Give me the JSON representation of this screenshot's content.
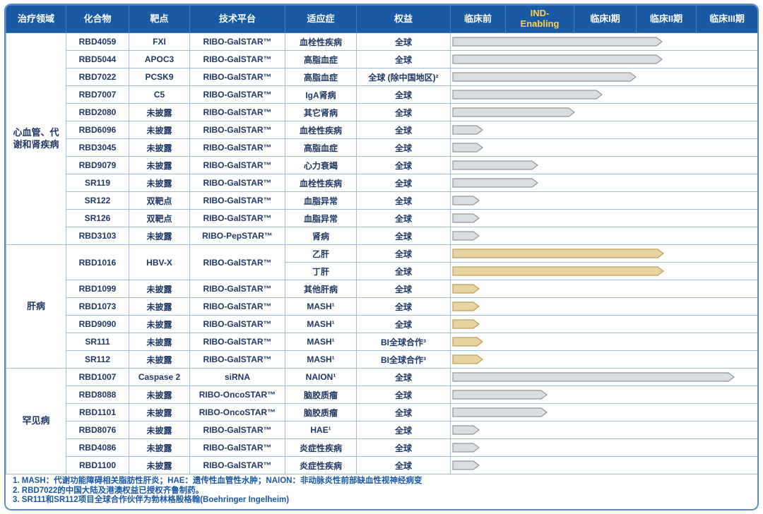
{
  "chart_data": {
    "type": "table",
    "title": "RNAi pipeline table",
    "columns": [
      "治疗领域",
      "化合物",
      "靶点",
      "技术平台",
      "适应症",
      "权益"
    ],
    "phases": [
      {
        "label": "临床前",
        "text_color": "#FFFFFF"
      },
      {
        "label": "IND-Enabling",
        "text_color": "#FFD24A"
      },
      {
        "label": "临床I期",
        "text_color": "#FFFFFF"
      },
      {
        "label": "临床II期",
        "text_color": "#FFFFFF"
      },
      {
        "label": "临床III期",
        "text_color": "#FFFFFF"
      }
    ],
    "phase_axis": {
      "min": 0,
      "max": 5,
      "note": "bar values are progress in phase units, 1 unit = one phase column"
    },
    "groups": [
      {
        "area": "心血管、代谢和肾疾病",
        "style": "cvm",
        "bar_color": "gray",
        "rows": [
          {
            "compound": "RBD4059",
            "target": "FXI",
            "platform": "RIBO-GalSTAR™",
            "indication": "血栓性疾病",
            "rights": "全球",
            "bar": 3.42
          },
          {
            "compound": "RBD5044",
            "target": "APOC3",
            "platform": "RIBO-GalSTAR™",
            "indication": "高脂血症",
            "rights": "全球",
            "bar": 3.42
          },
          {
            "compound": "RBD7022",
            "target": "PCSK9",
            "platform": "RIBO-GalSTAR™",
            "indication": "高脂血症",
            "rights": "全球 (除中国地区)²",
            "bar": 3.0
          },
          {
            "compound": "RBD7007",
            "target": "C5",
            "platform": "RIBO-GalSTAR™",
            "indication": "IgA肾病",
            "rights": "全球",
            "bar": 2.45
          },
          {
            "compound": "RBD2080",
            "target": "未披露",
            "platform": "RIBO-GalSTAR™",
            "indication": "其它肾病",
            "rights": "全球",
            "bar": 2.0
          },
          {
            "compound": "RBD6096",
            "target": "未披露",
            "platform": "RIBO-GalSTAR™",
            "indication": "血栓性疾病",
            "rights": "全球",
            "bar": 0.5
          },
          {
            "compound": "RBD3045",
            "target": "未披露",
            "platform": "RIBO-GalSTAR™",
            "indication": "高脂血症",
            "rights": "全球",
            "bar": 0.5
          },
          {
            "compound": "RBD9079",
            "target": "未披露",
            "platform": "RIBO-GalSTAR™",
            "indication": "心力衰竭",
            "rights": "全球",
            "bar": 1.4
          },
          {
            "compound": "SR119",
            "target": "未披露",
            "platform": "RIBO-GalSTAR™",
            "indication": "血栓性疾病",
            "rights": "全球",
            "bar": 1.4
          },
          {
            "compound": "SR122",
            "target": "双靶点",
            "platform": "RIBO-GalSTAR™",
            "indication": "血脂异常",
            "rights": "全球",
            "bar": 0.45
          },
          {
            "compound": "SR126",
            "target": "双靶点",
            "platform": "RIBO-GalSTAR™",
            "indication": "血脂异常",
            "rights": "全球",
            "bar": 0.45
          },
          {
            "compound": "RBD3103",
            "target": "未披露",
            "platform": "RIBO-PepSTAR™",
            "indication": "肾病",
            "rights": "全球",
            "bar": 0.45,
            "highlight": "blue"
          }
        ]
      },
      {
        "area": "肝病",
        "style": "liver",
        "bar_color": "tan",
        "rows": [
          {
            "compound": "RBD1016",
            "target": "HBV-X",
            "platform": "RIBO-GalSTAR™",
            "sub_rows": [
              {
                "indication": "乙肝",
                "rights": "全球",
                "bar": 3.45
              },
              {
                "indication": "丁肝",
                "rights": "全球",
                "bar": 3.45
              }
            ]
          },
          {
            "compound": "RBD1099",
            "target": "未披露",
            "platform": "RIBO-GalSTAR™",
            "indication": "其他肝病",
            "rights": "全球",
            "bar": 0.45
          },
          {
            "compound": "RBD1073",
            "target": "未披露",
            "platform": "RIBO-GalSTAR™",
            "indication": "MASH¹",
            "rights": "全球",
            "bar": 0.45
          },
          {
            "compound": "RBD9090",
            "target": "未披露",
            "platform": "RIBO-GalSTAR™",
            "indication": "MASH¹",
            "rights": "全球",
            "bar": 0.45
          },
          {
            "compound": "SR111",
            "target": "未披露",
            "platform": "RIBO-GalSTAR™",
            "indication": "MASH¹",
            "rights": "BI全球合作³",
            "bar": 0.5
          },
          {
            "compound": "SR112",
            "target": "未披露",
            "platform": "RIBO-GalSTAR™",
            "indication": "MASH¹",
            "rights": "BI全球合作³",
            "bar": 0.5
          }
        ]
      },
      {
        "area": "罕见病",
        "style": "rare",
        "bar_color": "gray",
        "rows": [
          {
            "compound": "RBD1007",
            "target": "Caspase 2",
            "platform": "siRNA",
            "indication": "NAION¹",
            "rights": "全球",
            "bar": 4.6
          },
          {
            "compound": "RBD8088",
            "target": "未披露",
            "platform": "RIBO-OncoSTAR™",
            "indication": "脑胶质瘤",
            "rights": "全球",
            "bar": 1.55,
            "highlight": "orange"
          },
          {
            "compound": "RBD1101",
            "target": "未披露",
            "platform": "RIBO-OncoSTAR™",
            "indication": "脑胶质瘤",
            "rights": "全球",
            "bar": 1.55,
            "highlight": "orange"
          },
          {
            "compound": "RBD8076",
            "target": "未披露",
            "platform": "RIBO-GalSTAR™",
            "indication": "HAE¹",
            "rights": "全球",
            "bar": 0.45
          },
          {
            "compound": "RBD4086",
            "target": "未披露",
            "platform": "RIBO-GalSTAR™",
            "indication": "炎症性疾病",
            "rights": "全球",
            "bar": 0.45
          },
          {
            "compound": "RBD1100",
            "target": "未披露",
            "platform": "RIBO-GalSTAR™",
            "indication": "炎症性疾病",
            "rights": "全球",
            "bar": 0.45
          }
        ]
      }
    ]
  },
  "footnotes": [
    "1. MASH：代谢功能障碍相关脂肪性肝炎；HAE：遗传性血管性水肿；NAION：非动脉炎性前部缺血性视神经病变",
    "2. RBD7022的中国大陆及港澳权益已授权齐鲁制药。",
    "3. SR111和SR112项目全球合作伙伴为勃林格殷格翰(Boehringer Ingelheim)"
  ],
  "colors": {
    "header_bg": "#1A5AA5",
    "header_text": "#FFFFFF",
    "ind_enabling_text": "#FFD24A",
    "body_text": "#1F3864",
    "grid_border": "#9DBEE0",
    "cvm_area_bg": "#D7E5F5",
    "liver_row_bg": "#FCEFD6",
    "liver_area_bg": "#FBE7C4",
    "highlight_blue_text": "#3AA0DA",
    "highlight_blue_bg": "#E2EDF9",
    "highlight_orange_text": "#E8913B",
    "highlight_orange_bg": "#E9E9E9",
    "bar_gray_fill": "#DBDEE1",
    "bar_gray_stroke": "#8F989F",
    "bar_tan_fill": "#E8D4A2",
    "bar_tan_stroke": "#B99F57",
    "footnote_text": "#1858A8"
  }
}
